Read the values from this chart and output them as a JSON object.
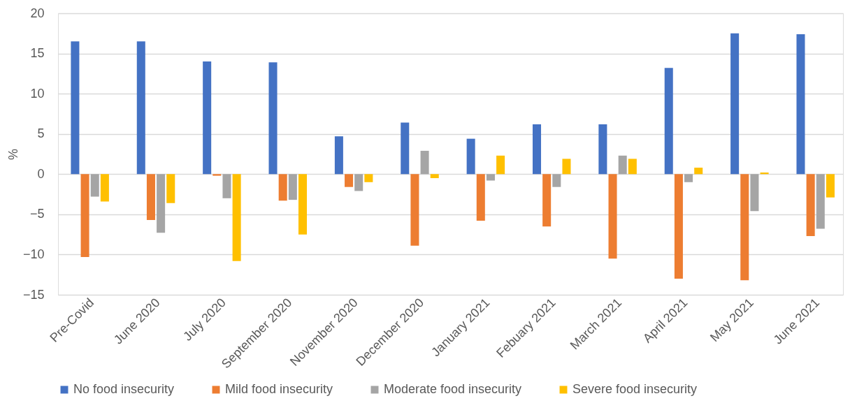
{
  "chart_data": {
    "type": "bar",
    "ylabel": "%",
    "categories": [
      "Pre-Covid",
      "June 2020",
      "July 2020",
      "September 2020",
      "November 2020",
      "December 2020",
      "January 2021",
      "Febuary 2021",
      "March 2021",
      "April 2021",
      "May 2021",
      "June 2021"
    ],
    "series": [
      {
        "name": "No food insecurity",
        "color": "#4472c4",
        "values": [
          16.5,
          16.5,
          14.0,
          13.9,
          4.7,
          6.4,
          4.4,
          6.2,
          6.2,
          13.2,
          17.5,
          17.4
        ]
      },
      {
        "name": "Mild food insecurity",
        "color": "#ed7d31",
        "values": [
          -10.3,
          -5.7,
          -0.2,
          -3.3,
          -1.6,
          -8.9,
          -5.8,
          -6.5,
          -10.5,
          -13.0,
          -13.2,
          -7.7
        ]
      },
      {
        "name": "Moderate food insecurity",
        "color": "#a5a5a5",
        "values": [
          -2.8,
          -7.3,
          -3.0,
          -3.2,
          -2.1,
          2.9,
          -0.8,
          -1.6,
          2.3,
          -1.0,
          -4.6,
          -6.8
        ]
      },
      {
        "name": "Severe food insecurity",
        "color": "#ffc000",
        "values": [
          -3.4,
          -3.6,
          -10.8,
          -7.5,
          -1.0,
          -0.5,
          2.3,
          1.9,
          1.9,
          0.8,
          0.2,
          -2.9
        ]
      }
    ],
    "ylim": [
      -15,
      20
    ],
    "yticks": [
      -15,
      -10,
      -5,
      0,
      5,
      10,
      15,
      20
    ],
    "grid": "y",
    "legend": "bottom"
  }
}
